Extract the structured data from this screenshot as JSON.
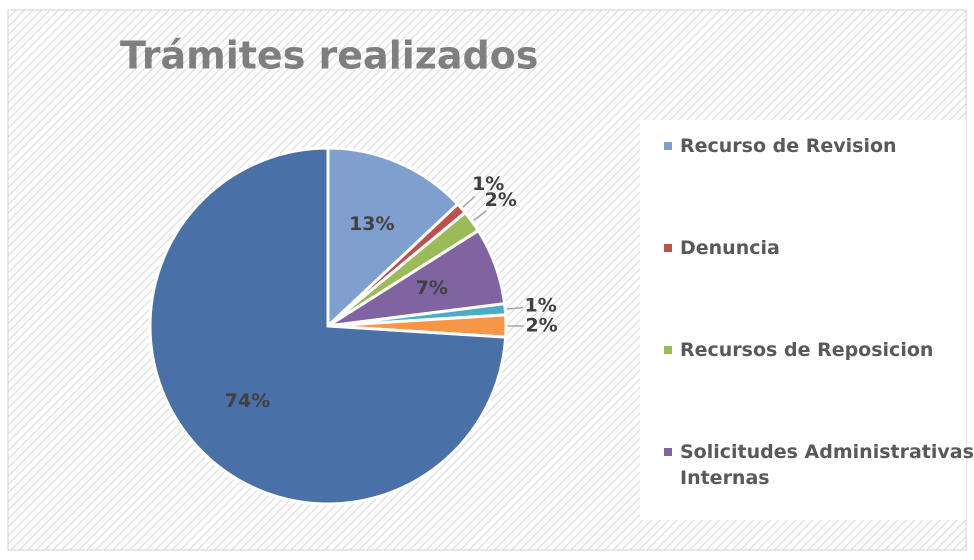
{
  "chart_data": {
    "type": "pie",
    "title": "Trámites realizados",
    "categories": [
      "Recurso de Revision",
      "Denuncia",
      "Recursos de Reposicion",
      "Solicitudes Administrativas Internas",
      null,
      null,
      null
    ],
    "values": [
      13,
      1,
      2,
      7,
      1,
      2,
      74
    ],
    "value_labels": [
      "13%",
      "1%",
      "2%",
      "7%",
      "1%",
      "2%",
      "74%"
    ],
    "colors": [
      "#7f9fcf",
      "#c0504d",
      "#9bbb59",
      "#8064a2",
      "#4bacc6",
      "#f79646",
      "#4a70a8"
    ],
    "legend": "right"
  }
}
